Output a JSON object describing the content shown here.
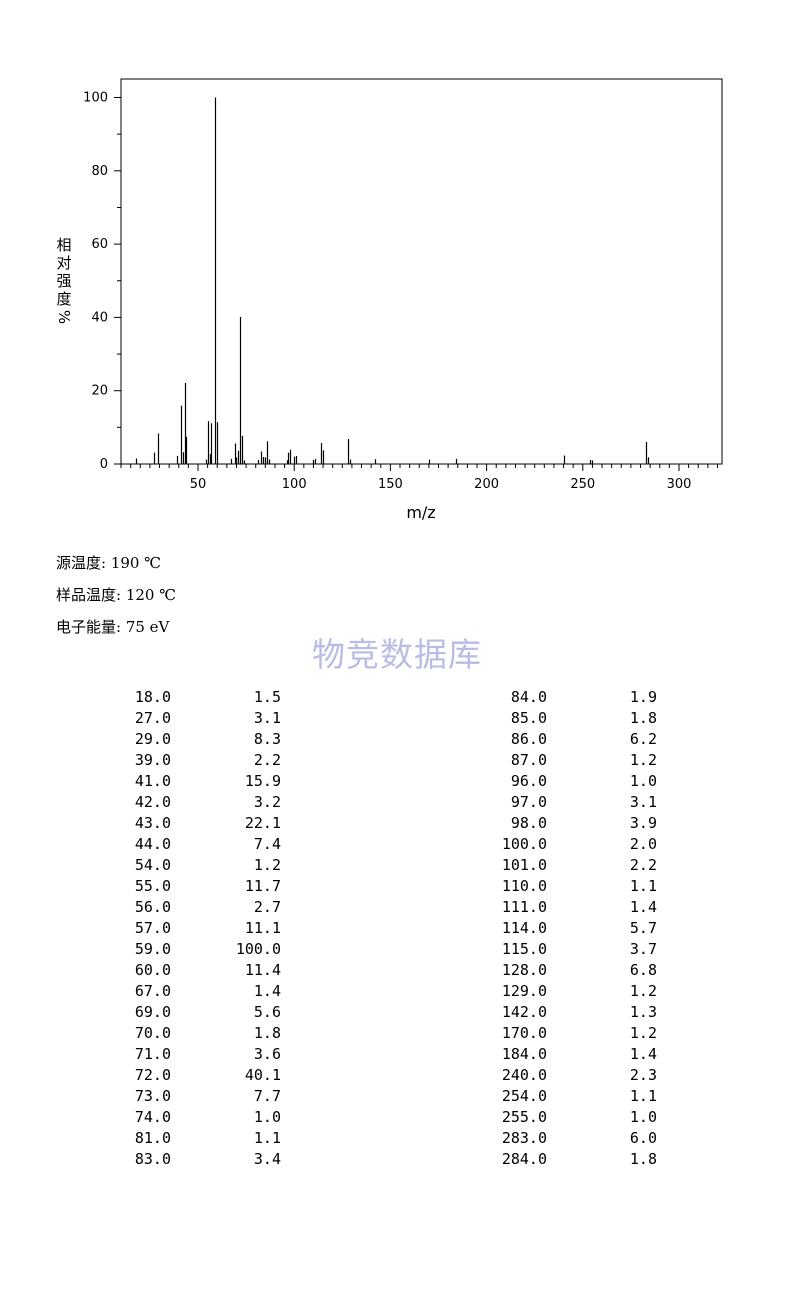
{
  "chart_data": {
    "type": "bar",
    "ylabel_chars": [
      "相",
      "对",
      "强",
      "度",
      "%"
    ],
    "xlabel": "m/z",
    "xlim": [
      10,
      320
    ],
    "ylim": [
      0,
      100
    ],
    "xticks": [
      50,
      100,
      150,
      200,
      250,
      300
    ],
    "yticks": [
      0,
      20,
      40,
      60,
      80,
      100
    ],
    "peaks": [
      {
        "mz": 18.0,
        "intensity": 1.5
      },
      {
        "mz": 27.0,
        "intensity": 3.1
      },
      {
        "mz": 29.0,
        "intensity": 8.3
      },
      {
        "mz": 39.0,
        "intensity": 2.2
      },
      {
        "mz": 41.0,
        "intensity": 15.9
      },
      {
        "mz": 42.0,
        "intensity": 3.2
      },
      {
        "mz": 43.0,
        "intensity": 22.1
      },
      {
        "mz": 44.0,
        "intensity": 7.4
      },
      {
        "mz": 54.0,
        "intensity": 1.2
      },
      {
        "mz": 55.0,
        "intensity": 11.7
      },
      {
        "mz": 56.0,
        "intensity": 2.7
      },
      {
        "mz": 57.0,
        "intensity": 11.1
      },
      {
        "mz": 59.0,
        "intensity": 100.0
      },
      {
        "mz": 60.0,
        "intensity": 11.4
      },
      {
        "mz": 67.0,
        "intensity": 1.4
      },
      {
        "mz": 69.0,
        "intensity": 5.6
      },
      {
        "mz": 70.0,
        "intensity": 1.8
      },
      {
        "mz": 71.0,
        "intensity": 3.6
      },
      {
        "mz": 72.0,
        "intensity": 40.1
      },
      {
        "mz": 73.0,
        "intensity": 7.7
      },
      {
        "mz": 74.0,
        "intensity": 1.0
      },
      {
        "mz": 81.0,
        "intensity": 1.1
      },
      {
        "mz": 83.0,
        "intensity": 3.4
      },
      {
        "mz": 84.0,
        "intensity": 1.9
      },
      {
        "mz": 85.0,
        "intensity": 1.8
      },
      {
        "mz": 86.0,
        "intensity": 6.2
      },
      {
        "mz": 87.0,
        "intensity": 1.2
      },
      {
        "mz": 96.0,
        "intensity": 1.0
      },
      {
        "mz": 97.0,
        "intensity": 3.1
      },
      {
        "mz": 98.0,
        "intensity": 3.9
      },
      {
        "mz": 100.0,
        "intensity": 2.0
      },
      {
        "mz": 101.0,
        "intensity": 2.2
      },
      {
        "mz": 110.0,
        "intensity": 1.1
      },
      {
        "mz": 111.0,
        "intensity": 1.4
      },
      {
        "mz": 114.0,
        "intensity": 5.7
      },
      {
        "mz": 115.0,
        "intensity": 3.7
      },
      {
        "mz": 128.0,
        "intensity": 6.8
      },
      {
        "mz": 129.0,
        "intensity": 1.2
      },
      {
        "mz": 142.0,
        "intensity": 1.3
      },
      {
        "mz": 170.0,
        "intensity": 1.2
      },
      {
        "mz": 184.0,
        "intensity": 1.4
      },
      {
        "mz": 240.0,
        "intensity": 2.3
      },
      {
        "mz": 254.0,
        "intensity": 1.1
      },
      {
        "mz": 255.0,
        "intensity": 1.0
      },
      {
        "mz": 283.0,
        "intensity": 6.0
      },
      {
        "mz": 284.0,
        "intensity": 1.8
      }
    ]
  },
  "conditions": [
    {
      "label": "源温度: ",
      "value": "190 ℃"
    },
    {
      "label": "样品温度: ",
      "value": "120 ℃"
    },
    {
      "label": "电子能量: ",
      "value": "75 eV"
    }
  ],
  "watermark": "物竞数据库",
  "peak_table_left": [
    [
      "18.0",
      "1.5"
    ],
    [
      "27.0",
      "3.1"
    ],
    [
      "29.0",
      "8.3"
    ],
    [
      "39.0",
      "2.2"
    ],
    [
      "41.0",
      "15.9"
    ],
    [
      "42.0",
      "3.2"
    ],
    [
      "43.0",
      "22.1"
    ],
    [
      "44.0",
      "7.4"
    ],
    [
      "54.0",
      "1.2"
    ],
    [
      "55.0",
      "11.7"
    ],
    [
      "56.0",
      "2.7"
    ],
    [
      "57.0",
      "11.1"
    ],
    [
      "59.0",
      "100.0"
    ],
    [
      "60.0",
      "11.4"
    ],
    [
      "67.0",
      "1.4"
    ],
    [
      "69.0",
      "5.6"
    ],
    [
      "70.0",
      "1.8"
    ],
    [
      "71.0",
      "3.6"
    ],
    [
      "72.0",
      "40.1"
    ],
    [
      "73.0",
      "7.7"
    ],
    [
      "74.0",
      "1.0"
    ],
    [
      "81.0",
      "1.1"
    ],
    [
      "83.0",
      "3.4"
    ]
  ],
  "peak_table_right": [
    [
      "84.0",
      "1.9"
    ],
    [
      "85.0",
      "1.8"
    ],
    [
      "86.0",
      "6.2"
    ],
    [
      "87.0",
      "1.2"
    ],
    [
      "96.0",
      "1.0"
    ],
    [
      "97.0",
      "3.1"
    ],
    [
      "98.0",
      "3.9"
    ],
    [
      "100.0",
      "2.0"
    ],
    [
      "101.0",
      "2.2"
    ],
    [
      "110.0",
      "1.1"
    ],
    [
      "111.0",
      "1.4"
    ],
    [
      "114.0",
      "5.7"
    ],
    [
      "115.0",
      "3.7"
    ],
    [
      "128.0",
      "6.8"
    ],
    [
      "129.0",
      "1.2"
    ],
    [
      "142.0",
      "1.3"
    ],
    [
      "170.0",
      "1.2"
    ],
    [
      "184.0",
      "1.4"
    ],
    [
      "240.0",
      "2.3"
    ],
    [
      "254.0",
      "1.1"
    ],
    [
      "255.0",
      "1.0"
    ],
    [
      "283.0",
      "6.0"
    ],
    [
      "284.0",
      "1.8"
    ]
  ]
}
